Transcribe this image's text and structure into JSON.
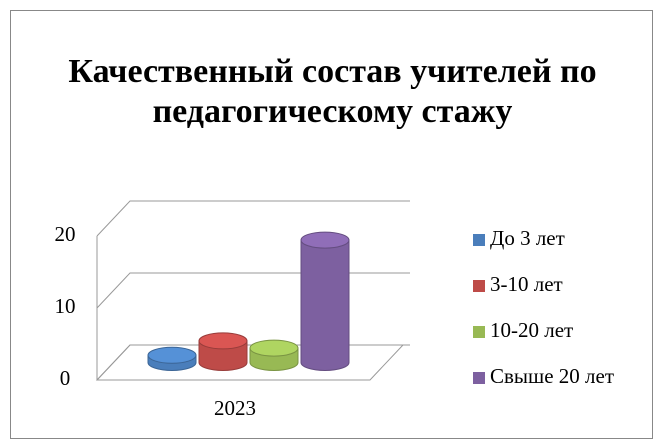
{
  "chart_data": {
    "type": "bar3d",
    "title": "Качественный состав учителей по педагогическому стажу",
    "categories": [
      "2023"
    ],
    "series": [
      {
        "name": "До 3 лет",
        "color": "#4a7ebb",
        "values": [
          1
        ]
      },
      {
        "name": "3-10 лет",
        "color": "#be4b48",
        "values": [
          3
        ]
      },
      {
        "name": "10-20 лет",
        "color": "#98b954",
        "values": [
          2
        ]
      },
      {
        "name": "Свыше 20 лет",
        "color": "#7d60a0",
        "values": [
          17
        ]
      }
    ],
    "ylim": [
      0,
      20
    ],
    "yticks": [
      0,
      10,
      20
    ],
    "grid": true,
    "legend": "right"
  }
}
